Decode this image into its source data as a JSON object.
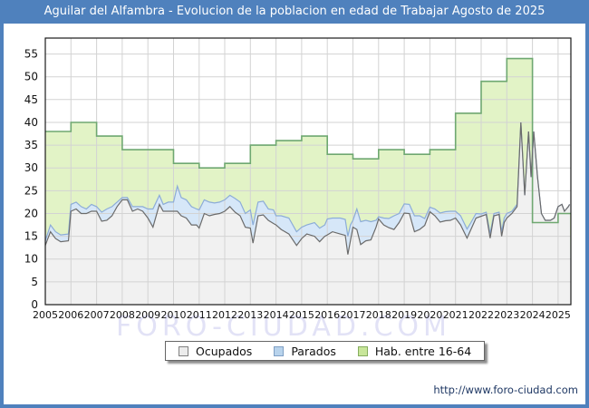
{
  "title": "Aguilar del Alfambra - Evolucion de la poblacion en edad de Trabajar Agosto de 2025",
  "watermark": "FORO-CIUDAD.COM",
  "footer": {
    "url": "http://www.foro-ciudad.com"
  },
  "legend": {
    "items": [
      {
        "label": "Ocupados",
        "color": "#ececec",
        "border": "#808080"
      },
      {
        "label": "Parados",
        "color": "#b8d3ec",
        "border": "#7f9fc4"
      },
      {
        "label": "Hab. entre 16-64",
        "color": "#c8e69a",
        "border": "#86ad5f"
      }
    ]
  },
  "colors": {
    "frame_blue": "#4f81bd",
    "title_text": "#ffffff",
    "plot_border": "#1a1a1a",
    "grid": "#d3d3d3",
    "hab_fill": "#e2f3c6",
    "hab_line": "#6fa871",
    "parados_fill": "#d6e7f8",
    "parados_line": "#8cacd8",
    "ocupados_fill": "#f1f1f1",
    "ocupados_line": "#6b6b6b",
    "tick_text": "#111111",
    "watermark": "#e2e2f6",
    "url_text": "#1f3864"
  },
  "chart_data": {
    "type": "area",
    "title": "Aguilar del Alfambra - Evolucion de la poblacion en edad de Trabajar Agosto de 2025",
    "xlabel": "",
    "ylabel": "",
    "grid": true,
    "legend_position": "bottom",
    "x_axis": {
      "range": [
        2005,
        2025.5
      ],
      "ticks": [
        2005,
        2006,
        2007,
        2008,
        2009,
        2010,
        2011,
        2012,
        2013,
        2014,
        2015,
        2016,
        2017,
        2018,
        2019,
        2020,
        2021,
        2022,
        2023,
        2024,
        2025
      ]
    },
    "y_axis": {
      "range": [
        0,
        58.5
      ],
      "ticks": [
        0,
        5,
        10,
        15,
        20,
        25,
        30,
        35,
        40,
        45,
        50,
        55
      ]
    },
    "series": [
      {
        "name": "Hab. entre 16-64",
        "render": "step-annual",
        "years": [
          2005,
          2006,
          2007,
          2008,
          2009,
          2010,
          2011,
          2012,
          2013,
          2014,
          2015,
          2016,
          2017,
          2018,
          2019,
          2020,
          2021,
          2022,
          2023,
          2024,
          2025
        ],
        "values": [
          38,
          40,
          37,
          34,
          34,
          31,
          30,
          31,
          35,
          36,
          37,
          33,
          32,
          34,
          33,
          34,
          42,
          49,
          54,
          18,
          20
        ]
      },
      {
        "name": "Ocupados",
        "render": "line-area",
        "x": [
          2005.0,
          2005.2,
          2005.4,
          2005.6,
          2005.9,
          2006.0,
          2006.2,
          2006.4,
          2006.6,
          2006.8,
          2007.0,
          2007.2,
          2007.4,
          2007.6,
          2007.8,
          2008.0,
          2008.2,
          2008.4,
          2008.6,
          2008.8,
          2009.0,
          2009.2,
          2009.45,
          2009.6,
          2009.8,
          2010.0,
          2010.15,
          2010.3,
          2010.5,
          2010.7,
          2010.9,
          2011.0,
          2011.2,
          2011.4,
          2011.6,
          2011.8,
          2012.0,
          2012.2,
          2012.4,
          2012.6,
          2012.8,
          2013.0,
          2013.1,
          2013.3,
          2013.5,
          2013.7,
          2013.9,
          2014.0,
          2014.2,
          2014.5,
          2014.8,
          2015.0,
          2015.2,
          2015.5,
          2015.7,
          2015.9,
          2016.0,
          2016.2,
          2016.5,
          2016.7,
          2016.8,
          2016.9,
          2017.0,
          2017.15,
          2017.3,
          2017.5,
          2017.7,
          2017.9,
          2018.0,
          2018.2,
          2018.4,
          2018.6,
          2018.8,
          2019.0,
          2019.2,
          2019.4,
          2019.6,
          2019.8,
          2020.0,
          2020.2,
          2020.4,
          2020.6,
          2020.8,
          2021.0,
          2021.2,
          2021.45,
          2021.6,
          2021.8,
          2022.0,
          2022.2,
          2022.35,
          2022.5,
          2022.7,
          2022.8,
          2022.9,
          2023.0,
          2023.2,
          2023.4,
          2023.55,
          2023.7,
          2023.85,
          2023.95,
          2024.05,
          2024.2,
          2024.35,
          2024.5,
          2024.7,
          2024.85,
          2025.0,
          2025.15,
          2025.25,
          2025.4,
          2025.45
        ],
        "values": [
          13,
          16,
          14.5,
          13.8,
          14,
          20.5,
          21,
          20,
          20,
          20.5,
          20.5,
          18.3,
          18.5,
          19.5,
          21.5,
          23,
          23,
          20.5,
          21,
          20.5,
          19,
          17,
          22,
          20.5,
          20.5,
          20.5,
          20.5,
          19.5,
          19,
          17.5,
          17.5,
          16.8,
          20,
          19.5,
          19.8,
          20,
          20.5,
          21.5,
          20.3,
          19.5,
          17,
          16.8,
          13.5,
          19.5,
          19.7,
          18.5,
          17.8,
          17.5,
          16.5,
          15.5,
          13,
          14.5,
          15.5,
          15,
          13.8,
          15,
          15.3,
          16,
          15.5,
          15.2,
          11,
          14,
          17,
          16.5,
          13.2,
          14,
          14.2,
          17,
          18.8,
          17.5,
          16.9,
          16.5,
          18,
          20.1,
          20,
          16,
          16.5,
          17.4,
          20.4,
          19.5,
          18.1,
          18.4,
          18.5,
          19,
          17.5,
          14.6,
          16.5,
          19,
          19.4,
          19.8,
          14.6,
          19.5,
          19.8,
          15,
          18,
          19,
          20,
          21.5,
          40,
          24,
          38,
          28,
          38,
          28,
          20,
          18.5,
          18.5,
          19,
          21.5,
          22,
          20.5,
          21.5,
          22
        ]
      },
      {
        "name": "Parados",
        "render": "stacked-on-ocupados",
        "values": [
          1,
          1.5,
          1.5,
          1.5,
          1.5,
          1.5,
          1.5,
          1.5,
          1,
          1.5,
          1,
          2,
          2.5,
          2,
          1,
          0.5,
          0.5,
          1,
          0.5,
          1,
          2,
          4,
          2,
          1.5,
          2,
          2,
          5.5,
          4,
          4,
          4,
          3.5,
          4,
          3,
          3,
          2.5,
          2.5,
          2.5,
          2.5,
          3,
          3,
          3,
          4,
          4,
          3,
          3,
          2.5,
          3,
          2,
          3,
          3.5,
          3,
          2.5,
          2,
          3,
          3,
          2.5,
          3.5,
          3,
          3.5,
          3.5,
          4,
          3.5,
          1.5,
          4.5,
          5,
          4.5,
          4,
          1.5,
          0.5,
          1.5,
          2,
          3,
          2,
          2,
          2,
          3.5,
          3,
          1.5,
          1,
          1.5,
          2,
          2,
          2,
          1.5,
          2,
          2,
          1.5,
          1,
          0.5,
          0.5,
          1,
          0.5,
          0.5,
          1,
          1,
          1,
          0.5,
          0.5,
          0,
          0,
          0,
          0,
          0,
          0,
          0,
          0,
          0,
          0,
          0,
          0,
          0,
          0,
          0
        ]
      }
    ]
  }
}
